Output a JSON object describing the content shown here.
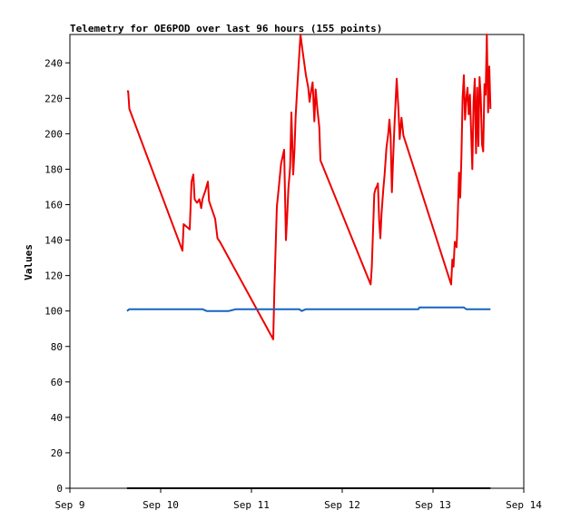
{
  "chart_data": {
    "type": "line",
    "title": "Telemetry for OE6POD over last 96 hours (155 points)",
    "ylabel": "Values",
    "xlabel": "",
    "ylim": [
      0,
      256
    ],
    "xlim": [
      "2023-09-09 00:00",
      "2023-09-14 00:00"
    ],
    "x_ticks": [
      "Sep 9",
      "Sep 10",
      "Sep 11",
      "Sep 12",
      "Sep 13",
      "Sep 14"
    ],
    "y_ticks": [
      0,
      20,
      40,
      60,
      80,
      100,
      120,
      140,
      160,
      180,
      200,
      220,
      240
    ],
    "grid": false,
    "series": [
      {
        "color": "#ee0000",
        "points": [
          [
            "2023-09-09 15:06",
            224
          ],
          [
            "2023-09-09 15:24",
            224
          ],
          [
            "2023-09-09 15:43",
            214
          ],
          [
            "2023-09-10 05:46",
            134
          ],
          [
            "2023-09-10 06:05",
            149
          ],
          [
            "2023-09-10 07:41",
            146
          ],
          [
            "2023-09-10 08:10",
            173
          ],
          [
            "2023-09-10 08:38",
            177
          ],
          [
            "2023-09-10 08:58",
            163
          ],
          [
            "2023-09-10 09:36",
            161
          ],
          [
            "2023-09-10 10:14",
            163
          ],
          [
            "2023-09-10 10:43",
            158
          ],
          [
            "2023-09-10 11:02",
            163
          ],
          [
            "2023-09-10 11:50",
            168
          ],
          [
            "2023-09-10 12:29",
            173
          ],
          [
            "2023-09-10 12:48",
            162
          ],
          [
            "2023-09-10 14:24",
            152
          ],
          [
            "2023-09-10 15:02",
            141
          ],
          [
            "2023-09-10 15:41",
            139
          ],
          [
            "2023-09-11 05:46",
            84
          ],
          [
            "2023-09-11 06:05",
            113
          ],
          [
            "2023-09-11 06:43",
            159
          ],
          [
            "2023-09-11 07:12",
            169
          ],
          [
            "2023-09-11 07:50",
            183
          ],
          [
            "2023-09-11 08:38",
            191
          ],
          [
            "2023-09-11 09:07",
            140
          ],
          [
            "2023-09-11 09:26",
            153
          ],
          [
            "2023-09-11 09:46",
            169
          ],
          [
            "2023-09-11 10:14",
            181
          ],
          [
            "2023-09-11 10:34",
            212
          ],
          [
            "2023-09-11 11:02",
            177
          ],
          [
            "2023-09-11 11:22",
            191
          ],
          [
            "2023-09-11 11:41",
            210
          ],
          [
            "2023-09-11 12:10",
            228
          ],
          [
            "2023-09-11 12:38",
            244
          ],
          [
            "2023-09-11 12:58",
            256
          ],
          [
            "2023-09-11 13:26",
            248
          ],
          [
            "2023-09-11 14:24",
            233
          ],
          [
            "2023-09-11 15:02",
            226
          ],
          [
            "2023-09-11 15:22",
            218
          ],
          [
            "2023-09-11 15:50",
            225
          ],
          [
            "2023-09-11 16:10",
            229
          ],
          [
            "2023-09-11 16:38",
            207
          ],
          [
            "2023-09-11 16:58",
            225
          ],
          [
            "2023-09-11 17:26",
            214
          ],
          [
            "2023-09-11 17:55",
            204
          ],
          [
            "2023-09-11 18:14",
            185
          ],
          [
            "2023-09-12 07:31",
            115
          ],
          [
            "2023-09-12 07:50",
            125
          ],
          [
            "2023-09-12 08:29",
            166
          ],
          [
            "2023-09-12 08:48",
            169
          ],
          [
            "2023-09-12 09:07",
            170
          ],
          [
            "2023-09-12 09:26",
            172
          ],
          [
            "2023-09-12 09:46",
            151
          ],
          [
            "2023-09-12 10:05",
            141
          ],
          [
            "2023-09-12 10:24",
            155
          ],
          [
            "2023-09-12 10:53",
            169
          ],
          [
            "2023-09-12 11:12",
            177
          ],
          [
            "2023-09-12 11:41",
            192
          ],
          [
            "2023-09-12 12:10",
            200
          ],
          [
            "2023-09-12 12:29",
            208
          ],
          [
            "2023-09-12 12:48",
            199
          ],
          [
            "2023-09-12 13:07",
            167
          ],
          [
            "2023-09-12 13:26",
            185
          ],
          [
            "2023-09-12 13:46",
            203
          ],
          [
            "2023-09-12 14:05",
            217
          ],
          [
            "2023-09-12 14:24",
            231
          ],
          [
            "2023-09-12 14:53",
            213
          ],
          [
            "2023-09-12 15:12",
            197
          ],
          [
            "2023-09-12 15:41",
            209
          ],
          [
            "2023-09-12 16:10",
            199
          ],
          [
            "2023-09-13 04:48",
            115
          ],
          [
            "2023-09-13 05:07",
            129
          ],
          [
            "2023-09-13 05:26",
            125
          ],
          [
            "2023-09-13 05:46",
            139
          ],
          [
            "2023-09-13 06:14",
            136
          ],
          [
            "2023-09-13 06:34",
            156
          ],
          [
            "2023-09-13 06:53",
            178
          ],
          [
            "2023-09-13 07:12",
            164
          ],
          [
            "2023-09-13 07:31",
            187
          ],
          [
            "2023-09-13 07:50",
            220
          ],
          [
            "2023-09-13 08:10",
            233
          ],
          [
            "2023-09-13 08:29",
            208
          ],
          [
            "2023-09-13 08:48",
            220
          ],
          [
            "2023-09-13 09:07",
            226
          ],
          [
            "2023-09-13 09:26",
            211
          ],
          [
            "2023-09-13 09:46",
            222
          ],
          [
            "2023-09-13 10:05",
            201
          ],
          [
            "2023-09-13 10:24",
            180
          ],
          [
            "2023-09-13 10:43",
            218
          ],
          [
            "2023-09-13 11:02",
            231
          ],
          [
            "2023-09-13 11:22",
            189
          ],
          [
            "2023-09-13 11:41",
            226
          ],
          [
            "2023-09-13 12:00",
            193
          ],
          [
            "2023-09-13 12:19",
            232
          ],
          [
            "2023-09-13 12:38",
            221
          ],
          [
            "2023-09-13 12:58",
            194
          ],
          [
            "2023-09-13 13:17",
            190
          ],
          [
            "2023-09-13 13:36",
            228
          ],
          [
            "2023-09-13 13:55",
            222
          ],
          [
            "2023-09-13 14:14",
            256
          ],
          [
            "2023-09-13 14:34",
            212
          ],
          [
            "2023-09-13 14:53",
            238
          ],
          [
            "2023-09-13 15:12",
            214
          ]
        ]
      },
      {
        "color": "#1565c0",
        "points": [
          [
            "2023-09-09 15:06",
            100
          ],
          [
            "2023-09-09 15:43",
            101
          ],
          [
            "2023-09-10 11:02",
            101
          ],
          [
            "2023-09-10 12:10",
            100
          ],
          [
            "2023-09-10 18:00",
            100
          ],
          [
            "2023-09-10 19:55",
            101
          ],
          [
            "2023-09-11 10:34",
            101
          ],
          [
            "2023-09-11 12:38",
            101
          ],
          [
            "2023-09-11 13:17",
            100
          ],
          [
            "2023-09-11 14:24",
            101
          ],
          [
            "2023-09-12 12:00",
            101
          ],
          [
            "2023-09-12 20:10",
            101
          ],
          [
            "2023-09-12 20:24",
            102
          ],
          [
            "2023-09-13 02:24",
            102
          ],
          [
            "2023-09-13 02:53",
            102
          ],
          [
            "2023-09-13 08:10",
            102
          ],
          [
            "2023-09-13 08:48",
            101
          ],
          [
            "2023-09-13 15:12",
            101
          ]
        ]
      },
      {
        "color": "#000000",
        "points": [
          [
            "2023-09-09 15:06",
            0
          ],
          [
            "2023-09-13 15:12",
            0
          ]
        ]
      }
    ]
  }
}
